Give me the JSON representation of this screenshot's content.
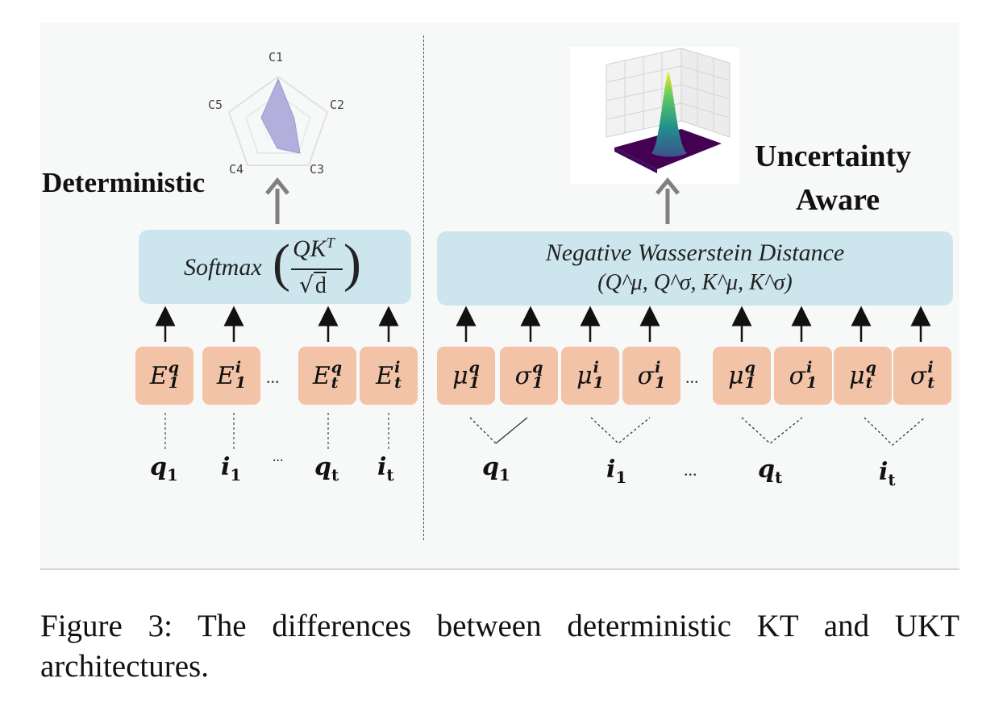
{
  "left": {
    "heading": "Deterministic",
    "formula": {
      "fn": "Softmax",
      "numerator": "QK",
      "numerator_sup": "T",
      "denominator": "d"
    },
    "radar": {
      "axes": [
        "C1",
        "C2",
        "C3",
        "C4",
        "C5"
      ]
    },
    "embeddings": [
      {
        "base": "E",
        "sup": "q",
        "sub": "1"
      },
      {
        "base": "E",
        "sup": "i",
        "sub": "1"
      },
      {
        "base": "E",
        "sup": "q",
        "sub": "t"
      },
      {
        "base": "E",
        "sup": "i",
        "sub": "t"
      }
    ],
    "tokens": [
      {
        "base": "q",
        "sub": "1"
      },
      {
        "base": "i",
        "sub": "1"
      },
      {
        "base": "q",
        "sub": "t"
      },
      {
        "base": "i",
        "sub": "t"
      }
    ],
    "ellipsis": "..."
  },
  "right": {
    "heading_line1": "Uncertainty",
    "heading_line2": "Aware",
    "formula_line1": "Negative Wasserstein Distance",
    "formula_line2": "(Q^μ, Q^σ, K^μ, K^σ)",
    "embeddings": [
      {
        "base": "μ",
        "sup": "q",
        "sub": "1"
      },
      {
        "base": "σ",
        "sup": "q",
        "sub": "1"
      },
      {
        "base": "μ",
        "sup": "i",
        "sub": "1"
      },
      {
        "base": "σ",
        "sup": "i",
        "sub": "1"
      },
      {
        "base": "μ",
        "sup": "q",
        "sub": "1"
      },
      {
        "base": "σ",
        "sup": "i",
        "sub": "1"
      },
      {
        "base": "μ",
        "sup": "q",
        "sub": "t"
      },
      {
        "base": "σ",
        "sup": "i",
        "sub": "t"
      }
    ],
    "tokens": [
      {
        "base": "q",
        "sub": "1"
      },
      {
        "base": "i",
        "sub": "1"
      },
      {
        "base": "q",
        "sub": "t"
      },
      {
        "base": "i",
        "sub": "t"
      }
    ],
    "ellipsis": "..."
  },
  "caption": "Figure 3: The differences between deterministic KT and UKT architectures.",
  "colors": {
    "box": "#cde6ee",
    "chip": "#f2c3a7",
    "radar_fill": "#b3aedb",
    "arrow_gray": "#808080"
  }
}
